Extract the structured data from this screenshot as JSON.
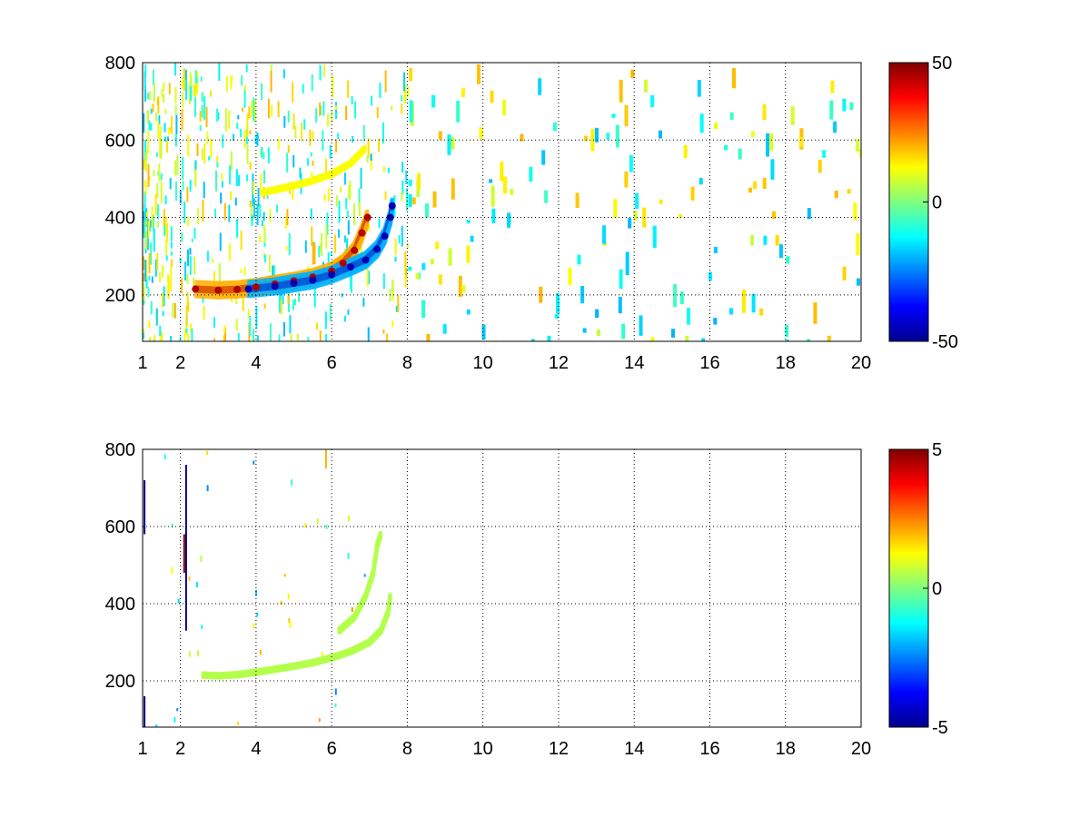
{
  "chart_data": [
    {
      "type": "heatmap",
      "title": "",
      "xlabel": "",
      "ylabel": "",
      "xlim": [
        1,
        20
      ],
      "ylim": [
        80,
        800
      ],
      "x_ticks": [
        1,
        2,
        4,
        6,
        8,
        10,
        12,
        14,
        16,
        18,
        20
      ],
      "x_tick_labels": [
        "1",
        "2",
        "4",
        "6",
        "8",
        "10",
        "12",
        "14",
        "16",
        "18",
        "20"
      ],
      "y_ticks": [
        200,
        400,
        600,
        800
      ],
      "y_tick_labels": [
        "200",
        "400",
        "600",
        "800"
      ],
      "grid": true,
      "colormap": "jet",
      "clim": [
        -50,
        50
      ],
      "colorbar_ticks": [
        50,
        0,
        -50
      ],
      "colorbar_tick_labels": [
        "50",
        "0",
        "-50"
      ],
      "features": [
        {
          "kind": "ridge",
          "sign": "positive",
          "value": 45,
          "points": [
            [
              2.4,
              215
            ],
            [
              3.0,
              212
            ],
            [
              3.5,
              214
            ],
            [
              4.0,
              220
            ],
            [
              4.5,
              228
            ],
            [
              5.0,
              236
            ],
            [
              5.5,
              246
            ],
            [
              6.0,
              262
            ],
            [
              6.3,
              282
            ],
            [
              6.6,
              315
            ],
            [
              6.8,
              360
            ],
            [
              6.95,
              400
            ]
          ]
        },
        {
          "kind": "ridge",
          "sign": "negative",
          "value": -45,
          "points": [
            [
              3.8,
              215
            ],
            [
              4.5,
              222
            ],
            [
              5.0,
              230
            ],
            [
              5.5,
              238
            ],
            [
              6.0,
              252
            ],
            [
              6.5,
              272
            ],
            [
              6.9,
              290
            ],
            [
              7.2,
              318
            ],
            [
              7.4,
              352
            ],
            [
              7.55,
              400
            ],
            [
              7.6,
              430
            ]
          ]
        },
        {
          "kind": "ridge",
          "sign": "positive",
          "value": 12,
          "points": [
            [
              4.2,
              465
            ],
            [
              4.8,
              478
            ],
            [
              5.4,
              492
            ],
            [
              6.0,
              512
            ],
            [
              6.5,
              540
            ],
            [
              6.9,
              580
            ]
          ]
        }
      ]
    },
    {
      "type": "heatmap",
      "title": "",
      "xlabel": "",
      "ylabel": "",
      "xlim": [
        1,
        20
      ],
      "ylim": [
        80,
        800
      ],
      "x_ticks": [
        1,
        2,
        4,
        6,
        8,
        10,
        12,
        14,
        16,
        18,
        20
      ],
      "x_tick_labels": [
        "1",
        "2",
        "4",
        "6",
        "8",
        "10",
        "12",
        "14",
        "16",
        "18",
        "20"
      ],
      "y_ticks": [
        200,
        400,
        600,
        800
      ],
      "y_tick_labels": [
        "200",
        "400",
        "600",
        "800"
      ],
      "grid": true,
      "colormap": "jet",
      "clim": [
        -5,
        5
      ],
      "colorbar_ticks": [
        5,
        0,
        -5
      ],
      "colorbar_tick_labels": [
        "5",
        "0",
        "-5"
      ],
      "features": [
        {
          "kind": "ridge",
          "sign": "near-zero",
          "value": 0.5,
          "points": [
            [
              2.6,
              215
            ],
            [
              3.0,
              213
            ],
            [
              3.5,
              216
            ],
            [
              4.0,
              222
            ],
            [
              4.5,
              230
            ],
            [
              5.0,
              238
            ],
            [
              5.5,
              247
            ],
            [
              6.0,
              260
            ],
            [
              6.5,
              276
            ],
            [
              7.0,
              300
            ],
            [
              7.3,
              330
            ],
            [
              7.5,
              380
            ],
            [
              7.55,
              420
            ]
          ]
        },
        {
          "kind": "ridge",
          "sign": "near-zero",
          "value": 0.5,
          "points": [
            [
              6.2,
              330
            ],
            [
              6.6,
              365
            ],
            [
              6.9,
              420
            ],
            [
              7.1,
              480
            ],
            [
              7.2,
              550
            ],
            [
              7.3,
              580
            ]
          ]
        },
        {
          "kind": "streak",
          "sign": "negative",
          "value": -5,
          "points": [
            [
              1.05,
              720
            ],
            [
              1.05,
              580
            ]
          ]
        },
        {
          "kind": "streak",
          "sign": "negative",
          "value": -5,
          "points": [
            [
              1.05,
              160
            ],
            [
              1.05,
              80
            ]
          ]
        },
        {
          "kind": "streak",
          "sign": "negative",
          "value": -5,
          "points": [
            [
              2.15,
              760
            ],
            [
              2.15,
              330
            ]
          ]
        },
        {
          "kind": "streak",
          "sign": "positive",
          "value": 5,
          "points": [
            [
              2.1,
              580
            ],
            [
              2.1,
              480
            ]
          ]
        },
        {
          "kind": "streak",
          "sign": "positive",
          "value": 2,
          "points": [
            [
              5.85,
              800
            ],
            [
              5.85,
              750
            ]
          ]
        }
      ]
    }
  ]
}
